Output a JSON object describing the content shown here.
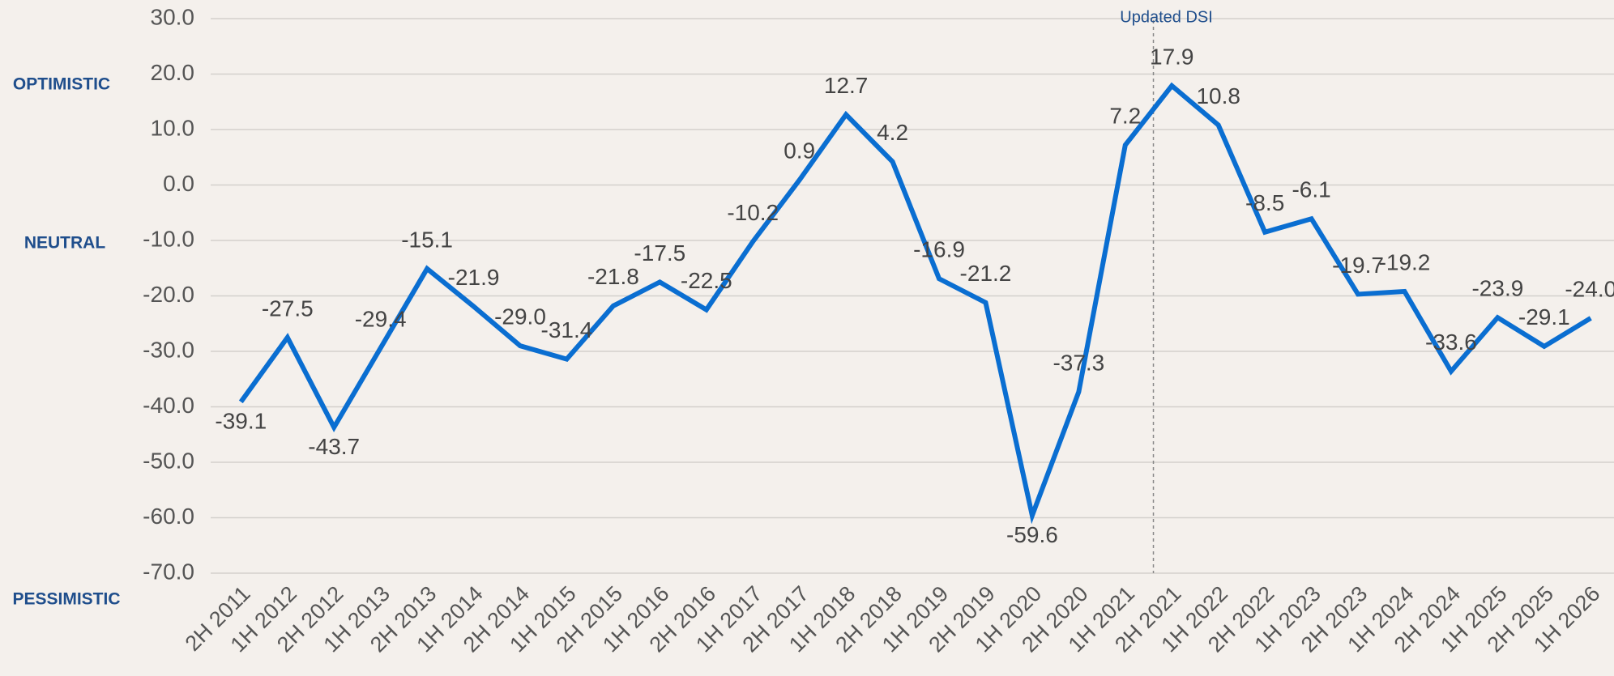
{
  "chart_data": {
    "type": "line",
    "categories": [
      "2H 2011",
      "1H 2012",
      "2H 2012",
      "1H 2013",
      "2H 2013",
      "1H 2014",
      "2H 2014",
      "1H 2015",
      "2H 2015",
      "1H 2016",
      "2H 2016",
      "1H 2017",
      "2H 2017",
      "1H 2018",
      "2H 2018",
      "1H 2019",
      "2H 2019",
      "1H 2020",
      "2H 2020",
      "1H 2021",
      "2H 2021",
      "1H 2022",
      "2H 2022",
      "1H 2023",
      "2H 2023",
      "1H 2024",
      "2H 2024",
      "1H 2025",
      "2H 2025",
      "1H 2026"
    ],
    "series": [
      {
        "name": "DSI",
        "color": "#0a6ed1",
        "values": [
          -39.1,
          -27.5,
          -43.7,
          -29.4,
          -15.1,
          -21.9,
          -29.0,
          -31.4,
          -21.8,
          -17.5,
          -22.5,
          -10.2,
          0.9,
          12.7,
          4.2,
          -16.9,
          -21.2,
          -59.6,
          -37.3,
          7.2,
          17.9,
          10.8,
          -8.5,
          -6.1,
          -19.7,
          -19.2,
          -33.6,
          -23.9,
          -29.1,
          -24.0
        ],
        "value_labels": [
          "-39.1",
          "-27.5",
          "-43.7",
          "-29.4",
          "-15.1",
          "-21.9",
          "-29.0",
          "-31.4",
          "-21.8",
          "-17.5",
          "-22.5",
          "-10.2",
          "0.9",
          "12.7",
          "4.2",
          "-16.9",
          "-21.2",
          "-59.6",
          "-37.3",
          "7.2",
          "17.9",
          "10.8",
          "-8.5",
          "-6.1",
          "-19.7",
          "-19.2",
          "-33.6",
          "-23.9",
          "-29.1",
          "-24.0"
        ]
      }
    ],
    "ylim": [
      -70,
      30
    ],
    "yticks": [
      {
        "value": -70,
        "label": "-70.0"
      },
      {
        "value": -60,
        "label": "-60.0"
      },
      {
        "value": -50,
        "label": "-50.0"
      },
      {
        "value": -40,
        "label": "-40.0"
      },
      {
        "value": -30,
        "label": "-30.0"
      },
      {
        "value": -20,
        "label": "-20.0"
      },
      {
        "value": -10,
        "label": "-10.0"
      },
      {
        "value": 0,
        "label": "0.0"
      },
      {
        "value": 10,
        "label": "10.0"
      },
      {
        "value": 20,
        "label": "20.0"
      },
      {
        "value": 30,
        "label": "30.0"
      }
    ],
    "grid": true,
    "annotations": [
      "Updated DSI",
      "OPTIMISTIC",
      "NEUTRAL",
      "PESSIMISTIC"
    ]
  }
}
